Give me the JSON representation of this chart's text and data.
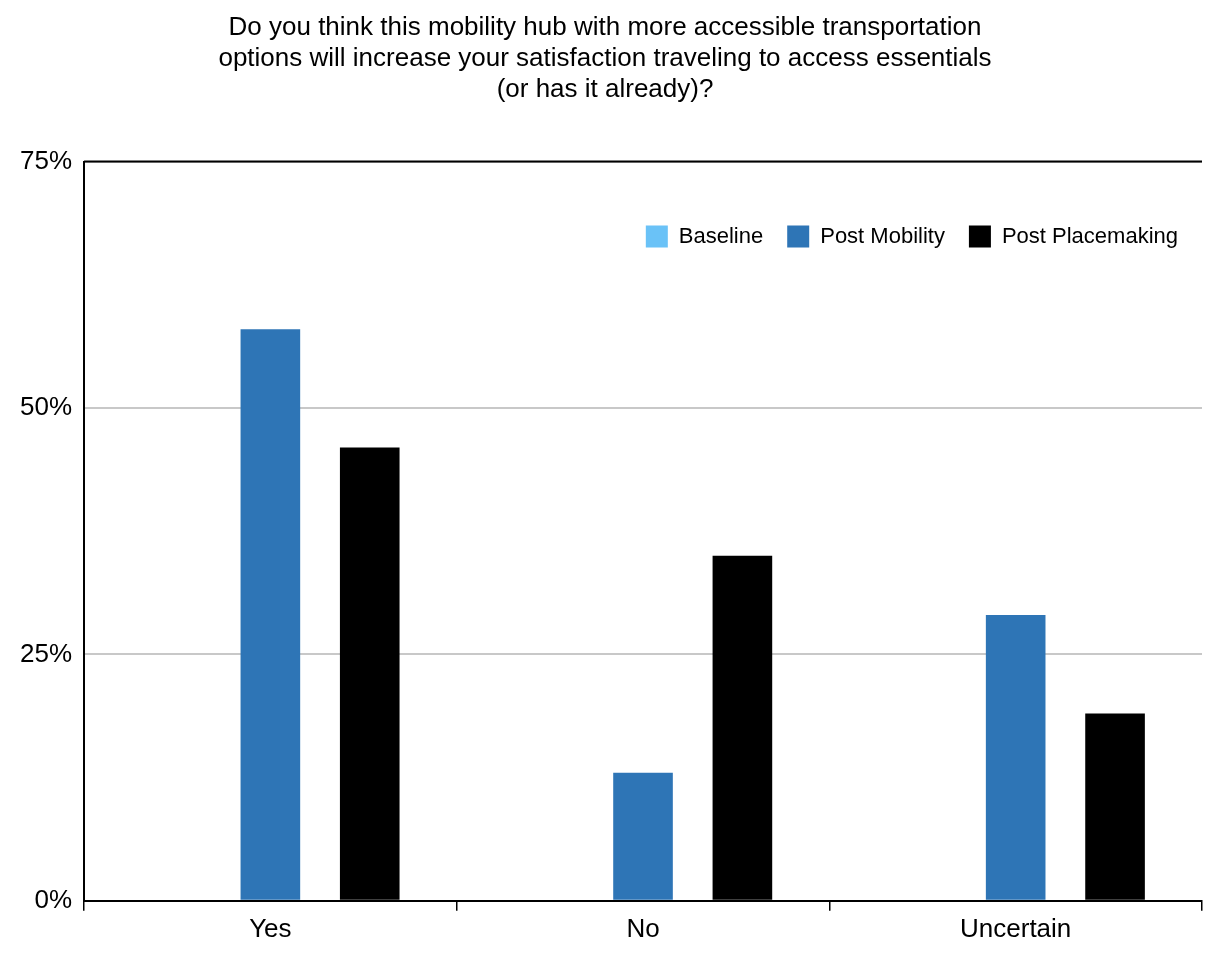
{
  "chart_data": {
    "type": "bar",
    "title": [
      "Do you think this mobility hub with more accessible transportation",
      "options will increase your satisfaction traveling to access essentials",
      "(or has it already)?"
    ],
    "categories": [
      "Yes",
      "No",
      "Uncertain"
    ],
    "series": [
      {
        "name": "Baseline",
        "color": "#6ac2f7",
        "values": [
          null,
          null,
          null
        ]
      },
      {
        "name": "Post Mobility",
        "color": "#2e75b6",
        "values": [
          58,
          13,
          29
        ]
      },
      {
        "name": "Post Placemaking",
        "color": "#000000",
        "values": [
          46,
          35,
          19
        ]
      }
    ],
    "ylim": [
      0,
      75
    ],
    "yticks": [
      {
        "value": 0,
        "label": "0%"
      },
      {
        "value": 25,
        "label": "25%"
      },
      {
        "value": 50,
        "label": "50%"
      },
      {
        "value": 75,
        "label": "75%"
      }
    ],
    "grid": "y",
    "legend": "top right"
  }
}
